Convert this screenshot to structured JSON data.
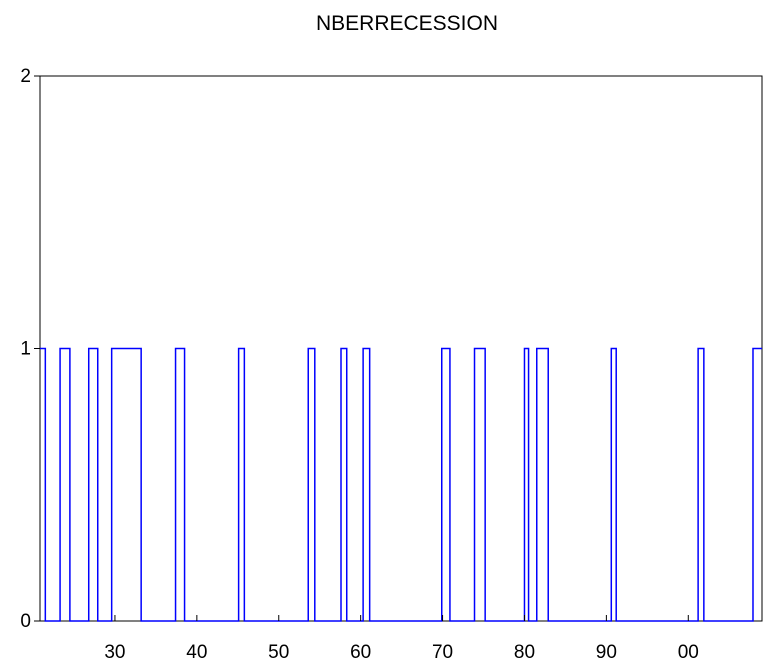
{
  "chart_data": {
    "type": "line",
    "title": "NBERRECESSION",
    "xlabel": "",
    "ylabel": "",
    "xlim": [
      1920.85,
      2009.0
    ],
    "ylim": [
      0,
      2
    ],
    "x_ticks": [
      1930,
      1940,
      1950,
      1960,
      1970,
      1980,
      1990,
      2000
    ],
    "x_tick_labels": [
      "30",
      "40",
      "50",
      "60",
      "70",
      "80",
      "90",
      "00"
    ],
    "y_ticks": [
      0,
      1,
      2
    ],
    "y_tick_labels": [
      "0",
      "1",
      "2"
    ],
    "grid": false,
    "legend": "none",
    "series": [
      {
        "color": "#0000ff",
        "step_points": [
          [
            1920.85,
            1
          ],
          [
            1921.5,
            0
          ],
          [
            1923.3,
            1
          ],
          [
            1924.5,
            0
          ],
          [
            1926.8,
            1
          ],
          [
            1927.9,
            0
          ],
          [
            1929.6,
            1
          ],
          [
            1933.2,
            0
          ],
          [
            1937.4,
            1
          ],
          [
            1938.5,
            0
          ],
          [
            1945.1,
            1
          ],
          [
            1945.8,
            0
          ],
          [
            1953.6,
            1
          ],
          [
            1954.4,
            0
          ],
          [
            1957.6,
            1
          ],
          [
            1958.3,
            0
          ],
          [
            1960.3,
            1
          ],
          [
            1961.1,
            0
          ],
          [
            1969.9,
            1
          ],
          [
            1970.9,
            0
          ],
          [
            1973.9,
            1
          ],
          [
            1975.2,
            0
          ],
          [
            1980.0,
            1
          ],
          [
            1980.5,
            0
          ],
          [
            1981.5,
            1
          ],
          [
            1982.9,
            0
          ],
          [
            1990.6,
            1
          ],
          [
            1991.2,
            0
          ],
          [
            2001.2,
            1
          ],
          [
            2001.9,
            0
          ],
          [
            2007.9,
            1
          ],
          [
            2009.0,
            1
          ]
        ]
      }
    ]
  }
}
